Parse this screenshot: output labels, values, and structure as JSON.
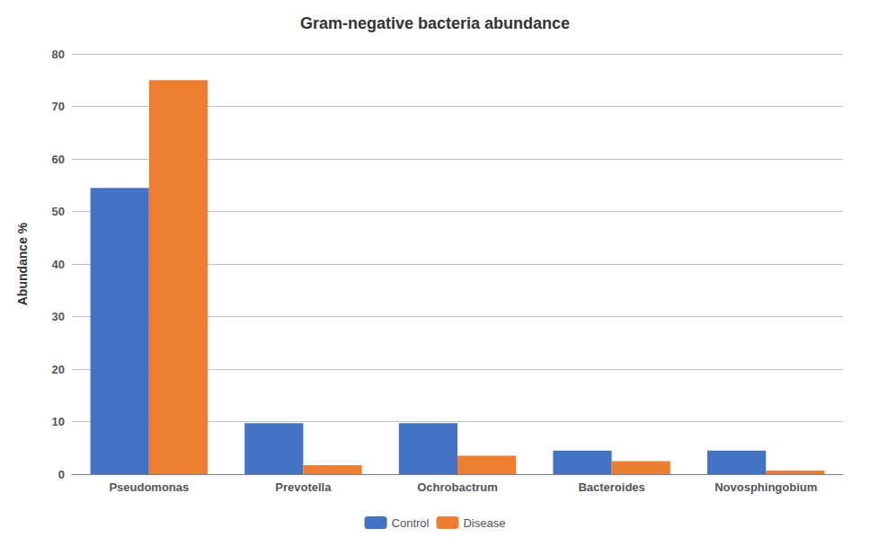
{
  "chart_data": {
    "type": "bar",
    "title": "Gram-negative bacteria abundance",
    "ylabel": "Abundance %",
    "categories": [
      "Pseudomonas",
      "Prevotella",
      "Ochrobactrum",
      "Bacteroides",
      "Novosphingobium"
    ],
    "series": [
      {
        "name": "Control",
        "color": "#4472C4",
        "values": [
          54.5,
          9.7,
          9.7,
          4.5,
          4.5
        ]
      },
      {
        "name": "Disease",
        "color": "#ED7D31",
        "values": [
          75.0,
          1.7,
          3.5,
          2.5,
          0.7
        ]
      }
    ],
    "ylim": [
      0,
      80
    ],
    "yticks": [
      0,
      10,
      20,
      30,
      40,
      50,
      60,
      70,
      80
    ],
    "grid": true,
    "legend": "bottom"
  }
}
